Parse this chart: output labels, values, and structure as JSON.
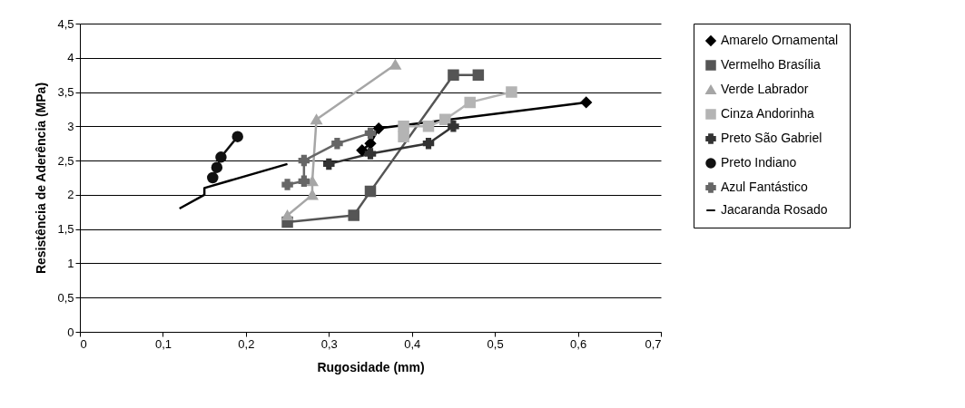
{
  "chart_data": {
    "type": "line",
    "xlabel": "Rugosidade (mm)",
    "ylabel": "Resistência de Aderência (MPa)",
    "xlim": [
      0,
      0.7
    ],
    "ylim": [
      0,
      4.5
    ],
    "xticks": [
      0,
      {
        "value": 0.1,
        "label": "0,1"
      },
      {
        "value": 0.2,
        "label": "0,2"
      },
      {
        "value": 0.3,
        "label": "0,3"
      },
      {
        "value": 0.4,
        "label": "0,4"
      },
      {
        "value": 0.5,
        "label": "0,5"
      },
      {
        "value": 0.6,
        "label": "0,6"
      },
      {
        "value": 0.7,
        "label": "0,7"
      }
    ],
    "yticks": [
      0,
      {
        "value": 0.5,
        "label": "0,5"
      },
      1,
      {
        "value": 1.5,
        "label": "1,5"
      },
      2,
      {
        "value": 2.5,
        "label": "2,5"
      },
      3,
      {
        "value": 3.5,
        "label": "3,5"
      },
      4,
      {
        "value": 4.5,
        "label": "4,5"
      }
    ],
    "grid": "y",
    "legend": "right",
    "series": [
      {
        "name": "Amarelo Ornamental",
        "color": "#000000",
        "marker": "diamond",
        "x": [
          0.34,
          0.35,
          0.36,
          0.61
        ],
        "values": [
          2.65,
          2.75,
          2.97,
          3.35
        ]
      },
      {
        "name": "Vermelho Brasília",
        "color": "#555555",
        "marker": "square",
        "x": [
          0.25,
          0.33,
          0.35,
          0.45,
          0.48
        ],
        "values": [
          1.6,
          1.7,
          2.05,
          3.75,
          3.75
        ]
      },
      {
        "name": "Verde Labrador",
        "color": "#a6a6a6",
        "marker": "triangle",
        "x": [
          0.25,
          0.28,
          0.28,
          0.285,
          0.38
        ],
        "values": [
          1.7,
          2.0,
          2.2,
          3.1,
          3.9
        ]
      },
      {
        "name": "Cinza Andorinha",
        "color": "#b4b4b4",
        "marker": "square",
        "x": [
          0.39,
          0.39,
          0.42,
          0.44,
          0.47,
          0.52
        ],
        "values": [
          2.85,
          3.0,
          3.0,
          3.1,
          3.35,
          3.5
        ]
      },
      {
        "name": "Preto São Gabriel",
        "color": "#333333",
        "marker": "cross",
        "x": [
          0.3,
          0.35,
          0.42,
          0.45
        ],
        "values": [
          2.45,
          2.6,
          2.75,
          3.0
        ]
      },
      {
        "name": "Preto Indiano",
        "color": "#111111",
        "marker": "circle",
        "x": [
          0.16,
          0.165,
          0.17,
          0.19
        ],
        "values": [
          2.25,
          2.4,
          2.55,
          2.85
        ]
      },
      {
        "name": "Azul Fantástico",
        "color": "#666666",
        "marker": "cross",
        "x": [
          0.25,
          0.27,
          0.27,
          0.31,
          0.35
        ],
        "values": [
          2.15,
          2.2,
          2.5,
          2.75,
          2.9
        ]
      },
      {
        "name": "Jacaranda Rosado",
        "color": "#000000",
        "marker": "none",
        "x": [
          0.12,
          0.15,
          0.15,
          0.25
        ],
        "values": [
          1.8,
          2.0,
          2.1,
          2.45
        ]
      }
    ]
  }
}
